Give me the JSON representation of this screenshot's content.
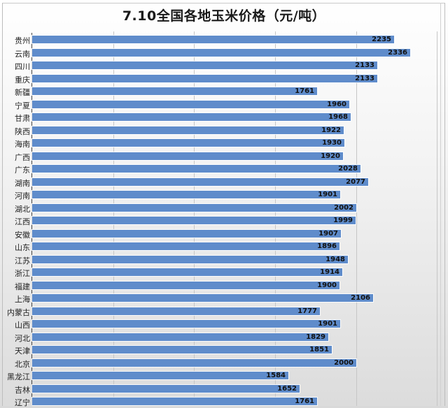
{
  "chart_data": {
    "type": "bar",
    "orientation": "horizontal",
    "title": "7.10全国各地玉米价格（元/吨）",
    "xlabel": "",
    "ylabel": "",
    "xlim": [
      0,
      2500
    ],
    "grid": true,
    "gridlines_x": [
      500,
      1000,
      1500,
      2000,
      2500
    ],
    "legend": "none",
    "data_labels": true,
    "series_color": "#5f8ccb",
    "categories": [
      "贵州",
      "云南",
      "四川",
      "重庆",
      "新疆",
      "宁夏",
      "甘肃",
      "陕西",
      "海南",
      "广西",
      "广东",
      "湖南",
      "河南",
      "湖北",
      "江西",
      "安徽",
      "山东",
      "江苏",
      "浙江",
      "福建",
      "上海",
      "内蒙古",
      "山西",
      "河北",
      "天津",
      "北京",
      "黑龙江",
      "吉林",
      "辽宁"
    ],
    "values": [
      2235,
      2336,
      2133,
      2133,
      1761,
      1960,
      1968,
      1922,
      1930,
      1920,
      2028,
      2077,
      1901,
      2002,
      1999,
      1907,
      1896,
      1948,
      1914,
      1900,
      2106,
      1777,
      1901,
      1829,
      1851,
      2000,
      1584,
      1652,
      1761
    ]
  }
}
